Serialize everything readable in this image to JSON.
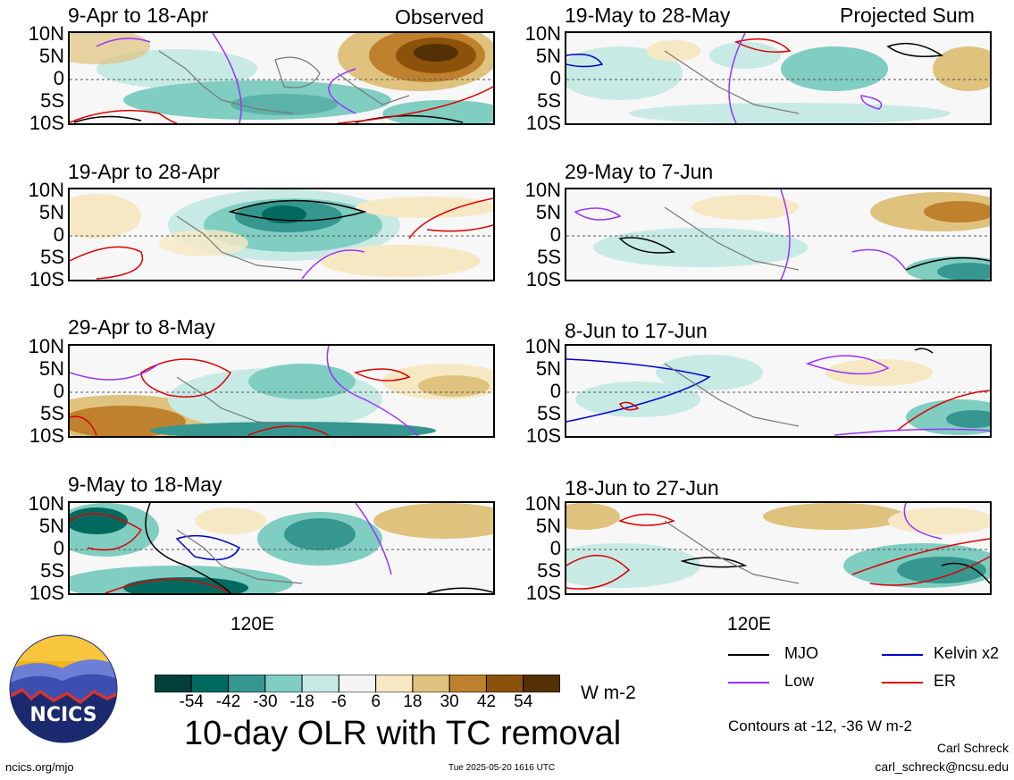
{
  "header": {
    "observed_label": "Observed",
    "projected_label": "Projected Sum"
  },
  "panels_left": [
    {
      "title": "9-Apr to 18-Apr"
    },
    {
      "title": "19-Apr to 28-Apr"
    },
    {
      "title": "29-Apr to 8-May"
    },
    {
      "title": "9-May to 18-May"
    }
  ],
  "panels_right": [
    {
      "title": "19-May to 28-May"
    },
    {
      "title": "29-May to 7-Jun"
    },
    {
      "title": "8-Jun to 17-Jun"
    },
    {
      "title": "18-Jun to 27-Jun"
    }
  ],
  "lat_labels": [
    "10N",
    "5N",
    "0",
    "5S",
    "10S"
  ],
  "lon_label": "120E",
  "colorbar": {
    "ticks": [
      "-54",
      "-42",
      "-30",
      "-18",
      "-6",
      "6",
      "18",
      "30",
      "42",
      "54"
    ],
    "colors": [
      "#013f3a",
      "#016a60",
      "#35978f",
      "#80cdc1",
      "#c7eae5",
      "#f5f5f5",
      "#f6e8c3",
      "#dfc27d",
      "#bf812d",
      "#8c510a",
      "#543005"
    ],
    "units": "W m-2"
  },
  "main_title": "10-day OLR with TC removal",
  "legend": {
    "items": [
      {
        "label": "MJO",
        "color": "#000000"
      },
      {
        "label": "Kelvin x2",
        "color": "#0000cc"
      },
      {
        "label": "Low",
        "color": "#9933ff"
      },
      {
        "label": "ER",
        "color": "#dd0000"
      }
    ],
    "contours_note": "Contours at -12, -36 W m-2"
  },
  "logo": {
    "text": "NCICS"
  },
  "footer": {
    "url": "ncics.org/mjo",
    "timestamp": "Tue 2025-05-20 1616 UTC",
    "author": "Carl Schreck",
    "email": "carl_schreck@ncsu.edu"
  }
}
